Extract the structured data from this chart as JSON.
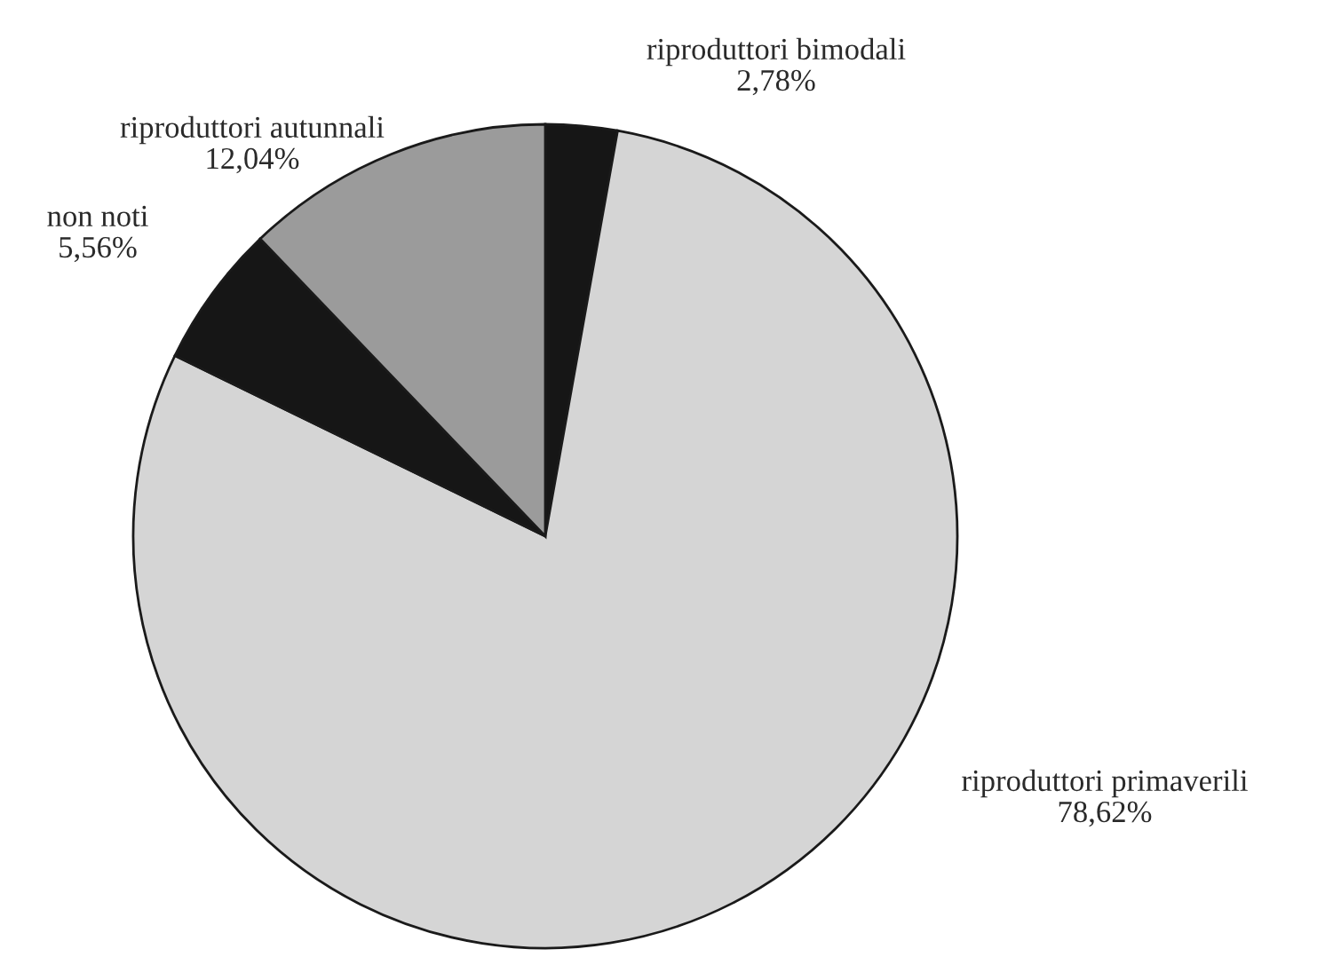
{
  "chart_data": {
    "type": "pie",
    "categories": [
      "riproduttori bimodali",
      "riproduttori primaverili",
      "non noti",
      "riproduttori autunnali"
    ],
    "values": [
      2.78,
      78.62,
      5.56,
      12.04
    ],
    "value_labels": [
      "2,78%",
      "78,62%",
      "5,56%",
      "12,04%"
    ],
    "colors": [
      "#161616",
      "#d5d5d5",
      "#161616",
      "#9b9b9b"
    ]
  }
}
